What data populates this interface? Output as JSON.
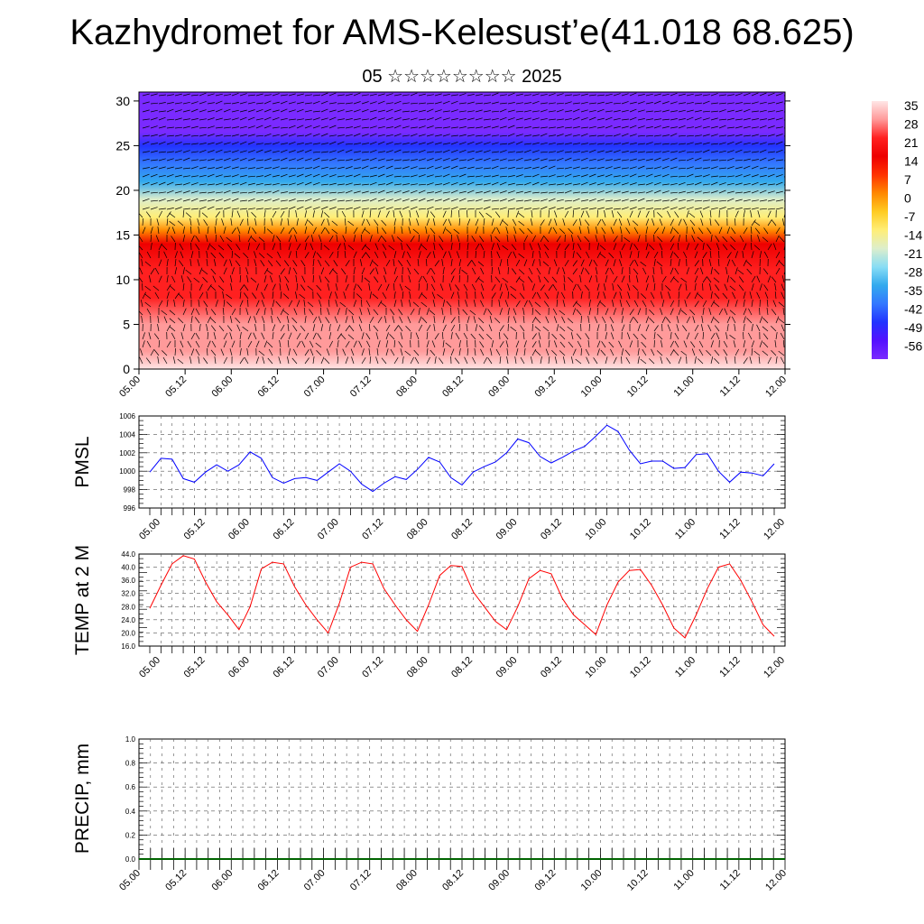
{
  "title": "Kazhydromet for AMS-Kelesust’e(41.018 68.625)",
  "subtitle": "05 ☆☆☆☆☆☆☆☆ 2025",
  "colors": {
    "pmsl_line": "#0000ff",
    "temp_line": "#ff0000",
    "grid": "#555555"
  },
  "chart_data": [
    {
      "type": "heatmap",
      "id": "cross-section",
      "x_tick_labels": [
        "05.00",
        "05.12",
        "06.00",
        "06.12",
        "07.00",
        "07.12",
        "08.00",
        "08.12",
        "09.00",
        "09.12",
        "10.00",
        "10.12",
        "11.00",
        "11.12",
        "12.00"
      ],
      "y_ticks": [
        0,
        5,
        10,
        15,
        20,
        25,
        30
      ],
      "ylim": [
        0,
        31
      ],
      "colorbar_labels": [
        "35",
        "28",
        "21",
        "14",
        "7",
        "0",
        "-7",
        "-14",
        "-21",
        "-28",
        "-35",
        "-42",
        "-49",
        "-56"
      ],
      "temperature_profile": {
        "heights": [
          0,
          2,
          5,
          8,
          11,
          14,
          15.5,
          17,
          19,
          21,
          23,
          25,
          26.5,
          28,
          31
        ],
        "values": [
          35,
          32,
          30,
          27,
          24,
          18,
          5,
          -5,
          -15,
          -25,
          -35,
          -45,
          -56,
          -56,
          -56
        ]
      }
    },
    {
      "type": "line",
      "id": "pmsl",
      "ylabel": "PMSL",
      "ylim": [
        996,
        1006
      ],
      "y_ticks": [
        996,
        998,
        1000,
        1002,
        1004,
        1006
      ],
      "x_tick_labels": [
        "05.00",
        "05.12",
        "06.00",
        "06.12",
        "07.00",
        "07.12",
        "08.00",
        "08.12",
        "09.00",
        "09.12",
        "10.00",
        "10.12",
        "11.00",
        "11.12",
        "12.00"
      ],
      "values": [
        999.9,
        1001.4,
        1001.3,
        999.2,
        998.8,
        999.9,
        1000.7,
        1000.0,
        1000.7,
        1002.1,
        1001.4,
        999.3,
        998.7,
        999.2,
        999.3,
        999.0,
        999.9,
        1000.8,
        1000.0,
        998.6,
        997.8,
        998.7,
        999.4,
        999.1,
        1000.2,
        1001.5,
        1001.0,
        999.3,
        998.5,
        999.9,
        1000.5,
        1001.0,
        1002.0,
        1003.5,
        1003.1,
        1001.6,
        1000.9,
        1001.5,
        1002.2,
        1002.7,
        1003.8,
        1005.0,
        1004.3,
        1002.3,
        1000.8,
        1001.1,
        1001.1,
        1000.3,
        1000.4,
        1001.8,
        1001.9,
        1000.0,
        998.8,
        999.9,
        999.8,
        999.5,
        1000.8
      ]
    },
    {
      "type": "line",
      "id": "temp2m",
      "ylabel": "TEMP at 2 M",
      "ylim": [
        16,
        44
      ],
      "y_ticks": [
        "16.0",
        "20.0",
        "24.0",
        "28.0",
        "32.0",
        "36.0",
        "40.0",
        "44.0"
      ],
      "x_tick_labels": [
        "05.00",
        "05.12",
        "06.00",
        "06.12",
        "07.00",
        "07.12",
        "08.00",
        "08.12",
        "09.00",
        "09.12",
        "10.00",
        "10.12",
        "11.00",
        "11.12",
        "12.00"
      ],
      "values": [
        27.5,
        34.5,
        41.0,
        43.5,
        42.5,
        35.5,
        29.5,
        25.5,
        21.0,
        28.0,
        39.5,
        41.5,
        41.0,
        34.0,
        28.5,
        24.0,
        20.0,
        29.0,
        40.0,
        41.5,
        41.0,
        33.5,
        28.5,
        24.0,
        20.5,
        28.5,
        37.5,
        40.5,
        40.2,
        32.5,
        28.0,
        23.5,
        21.0,
        28.0,
        36.5,
        39.0,
        38.0,
        30.5,
        25.5,
        22.5,
        19.5,
        28.5,
        35.5,
        39.0,
        39.3,
        34.5,
        28.5,
        21.5,
        18.5,
        25.5,
        33.5,
        40.0,
        41.0,
        36.0,
        29.5,
        22.5,
        19.0
      ]
    },
    {
      "type": "bar",
      "id": "precip",
      "ylabel": "PRECIP, mm",
      "ylim": [
        0,
        1
      ],
      "y_ticks": [
        "0.0",
        "0.2",
        "0.4",
        "0.6",
        "0.8",
        "1.0"
      ],
      "x_tick_labels": [
        "05.00",
        "05.12",
        "06.00",
        "06.12",
        "07.00",
        "07.12",
        "08.00",
        "08.12",
        "09.00",
        "09.12",
        "10.00",
        "10.12",
        "11.00",
        "11.12",
        "12.00"
      ],
      "values": []
    }
  ]
}
